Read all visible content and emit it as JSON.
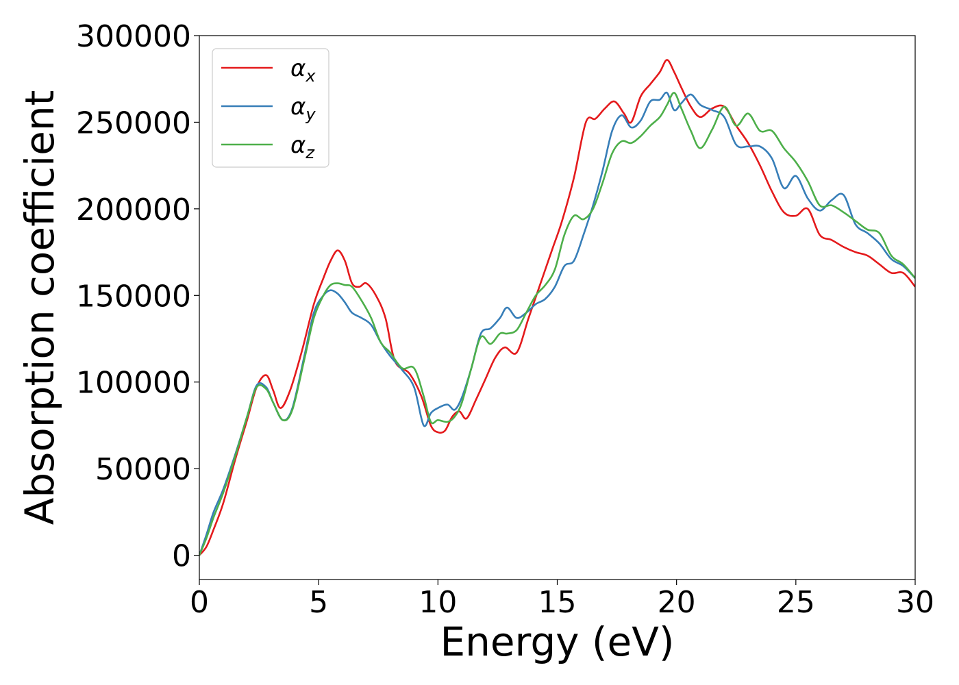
{
  "chart_data": {
    "type": "line",
    "title": "",
    "xlabel": "Energy (eV)",
    "ylabel": "Absorption coefficient",
    "xlim": [
      0,
      30
    ],
    "ylim": [
      -14000,
      300000
    ],
    "xticks": [
      "0",
      "5",
      "10",
      "15",
      "20",
      "25",
      "30"
    ],
    "yticks": [
      "0",
      "50000",
      "100000",
      "150000",
      "200000",
      "250000",
      "300000"
    ],
    "grid": false,
    "legend_position": "upper-left",
    "series": [
      {
        "name": "αx",
        "symbol": "α",
        "subscript": "x",
        "color": "#e41a1c",
        "x": [
          0,
          0.3,
          0.6,
          1.0,
          1.5,
          2.0,
          2.4,
          2.8,
          3.1,
          3.4,
          3.8,
          4.3,
          4.8,
          5.2,
          5.5,
          5.8,
          6.1,
          6.4,
          6.7,
          7.0,
          7.4,
          7.8,
          8.2,
          8.8,
          9.3,
          9.7,
          10.0,
          10.3,
          10.6,
          10.9,
          11.2,
          11.6,
          12.0,
          12.4,
          12.8,
          13.3,
          13.8,
          14.3,
          14.8,
          15.2,
          15.7,
          16.2,
          16.6,
          17.0,
          17.4,
          17.8,
          18.1,
          18.5,
          18.9,
          19.3,
          19.6,
          19.9,
          20.2,
          20.6,
          21.0,
          21.5,
          22.0,
          22.5,
          23.0,
          23.5,
          24.0,
          24.5,
          25.0,
          25.5,
          26.0,
          26.5,
          27.0,
          27.5,
          28.0,
          28.5,
          29.0,
          29.5,
          30.0
        ],
        "values": [
          0,
          5000,
          15000,
          30000,
          55000,
          78000,
          97000,
          104000,
          95000,
          85000,
          95000,
          118000,
          145000,
          160000,
          170000,
          176000,
          170000,
          157000,
          155000,
          157000,
          150000,
          137000,
          112000,
          105000,
          92000,
          75000,
          71000,
          72000,
          80000,
          83000,
          79000,
          90000,
          102000,
          114000,
          120000,
          117000,
          137000,
          157000,
          177000,
          193000,
          218000,
          250000,
          252000,
          258000,
          262000,
          255000,
          250000,
          265000,
          272000,
          279000,
          286000,
          279000,
          270000,
          259000,
          253000,
          258000,
          259000,
          248000,
          238000,
          225000,
          210000,
          198000,
          196000,
          200000,
          185000,
          182000,
          178000,
          175000,
          173000,
          168000,
          163000,
          163000,
          155000
        ]
      },
      {
        "name": "αy",
        "symbol": "α",
        "subscript": "y",
        "color": "#377eb8",
        "x": [
          0,
          0.3,
          0.6,
          1.0,
          1.5,
          2.0,
          2.4,
          2.8,
          3.1,
          3.5,
          3.9,
          4.4,
          4.8,
          5.2,
          5.5,
          5.8,
          6.1,
          6.4,
          6.8,
          7.2,
          7.6,
          8.0,
          8.5,
          9.0,
          9.4,
          9.7,
          10.0,
          10.4,
          10.7,
          11.0,
          11.4,
          11.8,
          12.2,
          12.6,
          12.9,
          13.3,
          13.7,
          14.1,
          14.5,
          14.9,
          15.3,
          15.7,
          16.1,
          16.5,
          16.9,
          17.3,
          17.7,
          18.1,
          18.5,
          18.9,
          19.3,
          19.6,
          19.9,
          20.2,
          20.6,
          21.0,
          21.5,
          22.0,
          22.5,
          23.0,
          23.5,
          24.0,
          24.5,
          25.0,
          25.5,
          26.0,
          26.5,
          27.0,
          27.5,
          28.0,
          28.5,
          29.0,
          29.5,
          30.0
        ],
        "values": [
          0,
          12000,
          25000,
          38000,
          58000,
          80000,
          98000,
          97000,
          88000,
          78000,
          85000,
          115000,
          140000,
          150000,
          153000,
          151000,
          146000,
          140000,
          137000,
          133000,
          123000,
          115000,
          107000,
          97000,
          75000,
          82000,
          85000,
          87000,
          84000,
          91000,
          108000,
          128000,
          131000,
          137000,
          143000,
          137000,
          140000,
          145000,
          148000,
          155000,
          167000,
          170000,
          185000,
          202000,
          222000,
          245000,
          254000,
          247000,
          251000,
          262000,
          263000,
          267000,
          257000,
          261000,
          266000,
          260000,
          257000,
          253000,
          237000,
          236000,
          236000,
          229000,
          212000,
          219000,
          206000,
          199000,
          205000,
          208000,
          191000,
          186000,
          180000,
          171000,
          167000,
          160000
        ]
      },
      {
        "name": "αz",
        "symbol": "α",
        "subscript": "z",
        "color": "#4daf4a",
        "x": [
          0,
          0.3,
          0.6,
          1.0,
          1.5,
          2.0,
          2.4,
          2.8,
          3.1,
          3.5,
          3.9,
          4.4,
          4.8,
          5.2,
          5.5,
          5.8,
          6.1,
          6.4,
          6.8,
          7.2,
          7.6,
          8.0,
          8.5,
          9.0,
          9.4,
          9.7,
          10.0,
          10.4,
          10.7,
          11.0,
          11.4,
          11.8,
          12.2,
          12.6,
          12.9,
          13.3,
          13.7,
          14.1,
          14.5,
          14.9,
          15.3,
          15.7,
          16.1,
          16.5,
          16.9,
          17.3,
          17.7,
          18.1,
          18.5,
          18.9,
          19.3,
          19.6,
          19.9,
          20.2,
          20.6,
          21.0,
          21.5,
          22.0,
          22.5,
          23.0,
          23.5,
          24.0,
          24.5,
          25.0,
          25.5,
          26.0,
          26.5,
          27.0,
          27.5,
          28.0,
          28.5,
          29.0,
          29.5,
          30.0
        ],
        "values": [
          0,
          10000,
          22000,
          36000,
          57000,
          80000,
          97000,
          96000,
          88000,
          78000,
          84000,
          113000,
          137000,
          150000,
          156000,
          157000,
          156000,
          155000,
          147000,
          137000,
          123000,
          117000,
          108000,
          108000,
          92000,
          77000,
          78000,
          77000,
          80000,
          88000,
          108000,
          126000,
          122000,
          128000,
          128000,
          130000,
          140000,
          150000,
          156000,
          165000,
          185000,
          196000,
          194000,
          200000,
          215000,
          232000,
          239000,
          238000,
          242000,
          248000,
          253000,
          260000,
          267000,
          258000,
          245000,
          235000,
          246000,
          259000,
          248000,
          255000,
          245000,
          245000,
          235000,
          227000,
          216000,
          202000,
          202000,
          198000,
          193000,
          188000,
          186000,
          173000,
          168000,
          160000
        ]
      }
    ]
  }
}
